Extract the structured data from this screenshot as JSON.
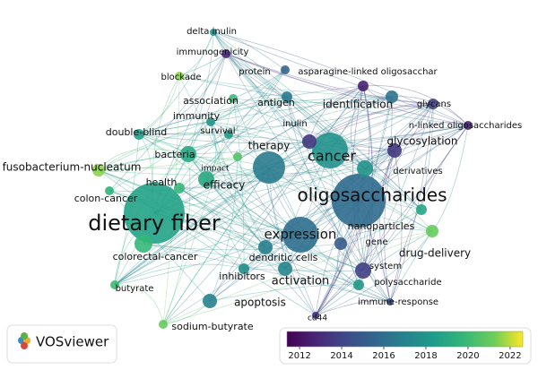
{
  "nodes": [
    {
      "label": "oligosaccharides",
      "avg_year": 2015.8
    },
    {
      "label": "dietary fiber",
      "avg_year": 2018.6
    },
    {
      "label": "cancer",
      "avg_year": 2017.8
    },
    {
      "label": "expression",
      "avg_year": 2016.0
    },
    {
      "label": "therapy",
      "avg_year": 2016.6
    },
    {
      "label": "fusobacterium-nucleatum",
      "avg_year": 2021.5
    },
    {
      "label": "colon-cancer",
      "avg_year": 2019.5
    },
    {
      "label": "colorectal-cancer",
      "avg_year": 2019.8
    },
    {
      "label": "butyrate",
      "avg_year": 2020.0
    },
    {
      "label": "sodium-butyrate",
      "avg_year": 2021.0
    },
    {
      "label": "apoptosis",
      "avg_year": 2017.0
    },
    {
      "label": "activation",
      "avg_year": 2017.2
    },
    {
      "label": "dendritic cells",
      "avg_year": 2016.8
    },
    {
      "label": "inhibitors",
      "avg_year": 2017.5
    },
    {
      "label": "efficacy",
      "avg_year": 2019.0
    },
    {
      "label": "health",
      "avg_year": 2019.8
    },
    {
      "label": "bacteria",
      "avg_year": 2019.0
    },
    {
      "label": "double-blind",
      "avg_year": 2018.5
    },
    {
      "label": "immunity",
      "avg_year": 2018.0
    },
    {
      "label": "survival",
      "avg_year": 2018.2
    },
    {
      "label": "impact",
      "avg_year": 2020.5
    },
    {
      "label": "association",
      "avg_year": 2020.0
    },
    {
      "label": "antigen",
      "avg_year": 2016.5
    },
    {
      "label": "inulin",
      "avg_year": 2013.5
    },
    {
      "label": "protein",
      "avg_year": 2015.5
    },
    {
      "label": "asparagine-linked oligosacchar",
      "avg_year": 2012.5
    },
    {
      "label": "identification",
      "avg_year": 2016.2
    },
    {
      "label": "glycans",
      "avg_year": 2013.8
    },
    {
      "label": "n-linked oligosaccharides",
      "avg_year": 2012.6
    },
    {
      "label": "glycosylation",
      "avg_year": 2013.5
    },
    {
      "label": "derivatives",
      "avg_year": 2017.8
    },
    {
      "label": "nanoparticles",
      "avg_year": 2018.8
    },
    {
      "label": "gene",
      "avg_year": 2015.0
    },
    {
      "label": "drug-delivery",
      "avg_year": 2021.0
    },
    {
      "label": "system",
      "avg_year": 2013.8
    },
    {
      "label": "polysaccharide",
      "avg_year": 2018.0
    },
    {
      "label": "immune-response",
      "avg_year": 2014.5
    },
    {
      "label": "cd44",
      "avg_year": 2013.0
    },
    {
      "label": "delta inulin",
      "avg_year": 2017.8
    },
    {
      "label": "immunogenicity",
      "avg_year": 2012.8
    },
    {
      "label": "blockade",
      "avg_year": 2021.5
    }
  ],
  "colorbar": {
    "range": [
      2011.4,
      2022.6
    ],
    "ticks": [
      2012,
      2014,
      2016,
      2018,
      2020,
      2022
    ]
  },
  "logo": {
    "text": "VOSviewer"
  }
}
